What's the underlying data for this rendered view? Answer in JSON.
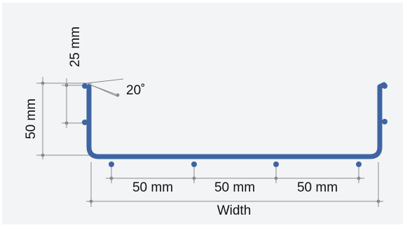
{
  "diagram": {
    "labels": {
      "height_total": "50 mm",
      "height_upper": "25 mm",
      "angle": "20˚",
      "spacing_1": "50 mm",
      "spacing_2": "50 mm",
      "spacing_3": "50 mm",
      "width": "Width"
    },
    "colors": {
      "profile": "#3e64a2",
      "dimension": "#8a8a8a",
      "background": "#f3f4f6",
      "text": "#111111"
    }
  }
}
